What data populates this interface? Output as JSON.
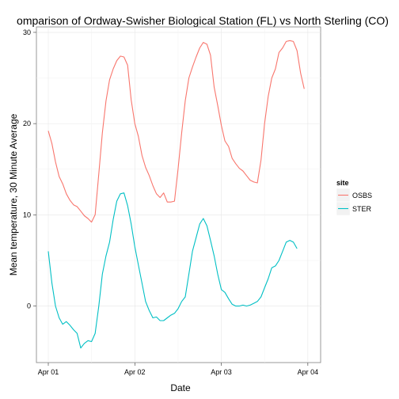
{
  "chart_data": {
    "type": "line",
    "title": "omparison of Ordway-Swisher Biological Station (FL) vs North Sterling (CO)",
    "xlabel": "Date",
    "ylabel": "Mean temperature, 30 Minute Average",
    "x_ticks": [
      "Apr 01",
      "Apr 02",
      "Apr 03",
      "Apr 04"
    ],
    "y_ticks": [
      0,
      10,
      20,
      30
    ],
    "xlim": [
      "2019-04-01 00:00",
      "2019-04-04 00:15"
    ],
    "ylim": [
      -6.2,
      30.6
    ],
    "grid": true,
    "legend": {
      "title": "site",
      "placement": "right"
    },
    "series": [
      {
        "name": "OSBS",
        "color": "#F8766D",
        "points": [
          [
            "2019-04-01 00:00",
            19.2
          ],
          [
            "2019-04-01 01:00",
            17.8
          ],
          [
            "2019-04-01 02:00",
            15.8
          ],
          [
            "2019-04-01 03:00",
            14.2
          ],
          [
            "2019-04-01 04:00",
            13.4
          ],
          [
            "2019-04-01 05:00",
            12.3
          ],
          [
            "2019-04-01 06:00",
            11.6
          ],
          [
            "2019-04-01 07:00",
            11.1
          ],
          [
            "2019-04-01 08:00",
            10.9
          ],
          [
            "2019-04-01 09:00",
            10.4
          ],
          [
            "2019-04-01 10:00",
            9.9
          ],
          [
            "2019-04-01 11:00",
            9.6
          ],
          [
            "2019-04-01 12:00",
            9.2
          ],
          [
            "2019-04-01 13:00",
            10.0
          ],
          [
            "2019-04-01 14:00",
            14.5
          ],
          [
            "2019-04-01 15:00",
            19.0
          ],
          [
            "2019-04-01 16:00",
            22.5
          ],
          [
            "2019-04-01 17:00",
            24.8
          ],
          [
            "2019-04-01 18:00",
            26.0
          ],
          [
            "2019-04-01 19:00",
            26.9
          ],
          [
            "2019-04-01 20:00",
            27.4
          ],
          [
            "2019-04-01 21:00",
            27.3
          ],
          [
            "2019-04-01 22:00",
            26.4
          ],
          [
            "2019-04-01 23:00",
            22.6
          ],
          [
            "2019-04-02 00:00",
            20.0
          ],
          [
            "2019-04-02 01:00",
            18.6
          ],
          [
            "2019-04-02 02:00",
            16.5
          ],
          [
            "2019-04-02 03:00",
            15.2
          ],
          [
            "2019-04-02 04:00",
            14.3
          ],
          [
            "2019-04-02 05:00",
            13.2
          ],
          [
            "2019-04-02 06:00",
            12.3
          ],
          [
            "2019-04-02 07:00",
            11.9
          ],
          [
            "2019-04-02 08:00",
            12.4
          ],
          [
            "2019-04-02 09:00",
            11.4
          ],
          [
            "2019-04-02 10:00",
            11.4
          ],
          [
            "2019-04-02 11:00",
            11.5
          ],
          [
            "2019-04-02 12:00",
            15.0
          ],
          [
            "2019-04-02 13:00",
            19.0
          ],
          [
            "2019-04-02 14:00",
            22.5
          ],
          [
            "2019-04-02 15:00",
            25.0
          ],
          [
            "2019-04-02 16:00",
            26.2
          ],
          [
            "2019-04-02 17:00",
            27.3
          ],
          [
            "2019-04-02 18:00",
            28.3
          ],
          [
            "2019-04-02 19:00",
            28.9
          ],
          [
            "2019-04-02 20:00",
            28.7
          ],
          [
            "2019-04-02 21:00",
            27.5
          ],
          [
            "2019-04-02 22:00",
            24.0
          ],
          [
            "2019-04-02 23:00",
            22.0
          ],
          [
            "2019-04-03 00:00",
            19.8
          ],
          [
            "2019-04-03 01:00",
            18.1
          ],
          [
            "2019-04-03 02:00",
            17.5
          ],
          [
            "2019-04-03 03:00",
            16.2
          ],
          [
            "2019-04-03 04:00",
            15.6
          ],
          [
            "2019-04-03 05:00",
            15.1
          ],
          [
            "2019-04-03 06:00",
            14.8
          ],
          [
            "2019-04-03 07:00",
            14.3
          ],
          [
            "2019-04-03 08:00",
            13.8
          ],
          [
            "2019-04-03 09:00",
            13.6
          ],
          [
            "2019-04-03 10:00",
            13.5
          ],
          [
            "2019-04-03 11:00",
            16.0
          ],
          [
            "2019-04-03 12:00",
            20.0
          ],
          [
            "2019-04-03 13:00",
            23.0
          ],
          [
            "2019-04-03 14:00",
            25.0
          ],
          [
            "2019-04-03 15:00",
            26.0
          ],
          [
            "2019-04-03 16:00",
            27.8
          ],
          [
            "2019-04-03 17:00",
            28.3
          ],
          [
            "2019-04-03 18:00",
            29.0
          ],
          [
            "2019-04-03 19:00",
            29.1
          ],
          [
            "2019-04-03 20:00",
            29.0
          ],
          [
            "2019-04-03 21:00",
            28.0
          ],
          [
            "2019-04-03 22:00",
            25.5
          ],
          [
            "2019-04-03 23:00",
            23.8
          ]
        ]
      },
      {
        "name": "STER",
        "color": "#00BFC4",
        "points": [
          [
            "2019-04-01 00:00",
            6.0
          ],
          [
            "2019-04-01 01:00",
            2.5
          ],
          [
            "2019-04-01 02:00",
            0.0
          ],
          [
            "2019-04-01 03:00",
            -1.3
          ],
          [
            "2019-04-01 04:00",
            -2.0
          ],
          [
            "2019-04-01 05:00",
            -1.7
          ],
          [
            "2019-04-01 06:00",
            -2.1
          ],
          [
            "2019-04-01 07:00",
            -2.6
          ],
          [
            "2019-04-01 08:00",
            -3.0
          ],
          [
            "2019-04-01 09:00",
            -4.6
          ],
          [
            "2019-04-01 10:00",
            -4.1
          ],
          [
            "2019-04-01 11:00",
            -3.8
          ],
          [
            "2019-04-01 12:00",
            -3.9
          ],
          [
            "2019-04-01 13:00",
            -3.0
          ],
          [
            "2019-04-01 14:00",
            0.0
          ],
          [
            "2019-04-01 15:00",
            3.5
          ],
          [
            "2019-04-01 16:00",
            5.5
          ],
          [
            "2019-04-01 17:00",
            7.0
          ],
          [
            "2019-04-01 18:00",
            9.5
          ],
          [
            "2019-04-01 19:00",
            11.5
          ],
          [
            "2019-04-01 20:00",
            12.3
          ],
          [
            "2019-04-01 21:00",
            12.4
          ],
          [
            "2019-04-01 22:00",
            11.0
          ],
          [
            "2019-04-01 23:00",
            9.0
          ],
          [
            "2019-04-02 00:00",
            6.5
          ],
          [
            "2019-04-02 01:00",
            4.5
          ],
          [
            "2019-04-02 02:00",
            2.5
          ],
          [
            "2019-04-02 03:00",
            0.5
          ],
          [
            "2019-04-02 04:00",
            -0.5
          ],
          [
            "2019-04-02 05:00",
            -1.3
          ],
          [
            "2019-04-02 06:00",
            -1.2
          ],
          [
            "2019-04-02 07:00",
            -1.6
          ],
          [
            "2019-04-02 08:00",
            -1.6
          ],
          [
            "2019-04-02 09:00",
            -1.3
          ],
          [
            "2019-04-02 10:00",
            -1.0
          ],
          [
            "2019-04-02 11:00",
            -0.8
          ],
          [
            "2019-04-02 12:00",
            -0.3
          ],
          [
            "2019-04-02 13:00",
            0.5
          ],
          [
            "2019-04-02 14:00",
            1.0
          ],
          [
            "2019-04-02 15:00",
            3.5
          ],
          [
            "2019-04-02 16:00",
            6.0
          ],
          [
            "2019-04-02 17:00",
            7.5
          ],
          [
            "2019-04-02 18:00",
            9.0
          ],
          [
            "2019-04-02 19:00",
            9.6
          ],
          [
            "2019-04-02 20:00",
            8.8
          ],
          [
            "2019-04-02 21:00",
            7.2
          ],
          [
            "2019-04-02 22:00",
            5.5
          ],
          [
            "2019-04-02 23:00",
            3.5
          ],
          [
            "2019-04-03 00:00",
            1.8
          ],
          [
            "2019-04-03 01:00",
            1.5
          ],
          [
            "2019-04-03 02:00",
            0.8
          ],
          [
            "2019-04-03 03:00",
            0.2
          ],
          [
            "2019-04-03 04:00",
            0.0
          ],
          [
            "2019-04-03 05:00",
            0.0
          ],
          [
            "2019-04-03 06:00",
            0.1
          ],
          [
            "2019-04-03 07:00",
            0.0
          ],
          [
            "2019-04-03 08:00",
            0.1
          ],
          [
            "2019-04-03 09:00",
            0.3
          ],
          [
            "2019-04-03 10:00",
            0.5
          ],
          [
            "2019-04-03 11:00",
            1.0
          ],
          [
            "2019-04-03 12:00",
            2.0
          ],
          [
            "2019-04-03 13:00",
            3.0
          ],
          [
            "2019-04-03 14:00",
            4.2
          ],
          [
            "2019-04-03 15:00",
            4.4
          ],
          [
            "2019-04-03 16:00",
            5.0
          ],
          [
            "2019-04-03 17:00",
            6.0
          ],
          [
            "2019-04-03 18:00",
            7.0
          ],
          [
            "2019-04-03 19:00",
            7.2
          ],
          [
            "2019-04-03 20:00",
            7.0
          ],
          [
            "2019-04-03 21:00",
            6.3
          ]
        ]
      }
    ]
  }
}
